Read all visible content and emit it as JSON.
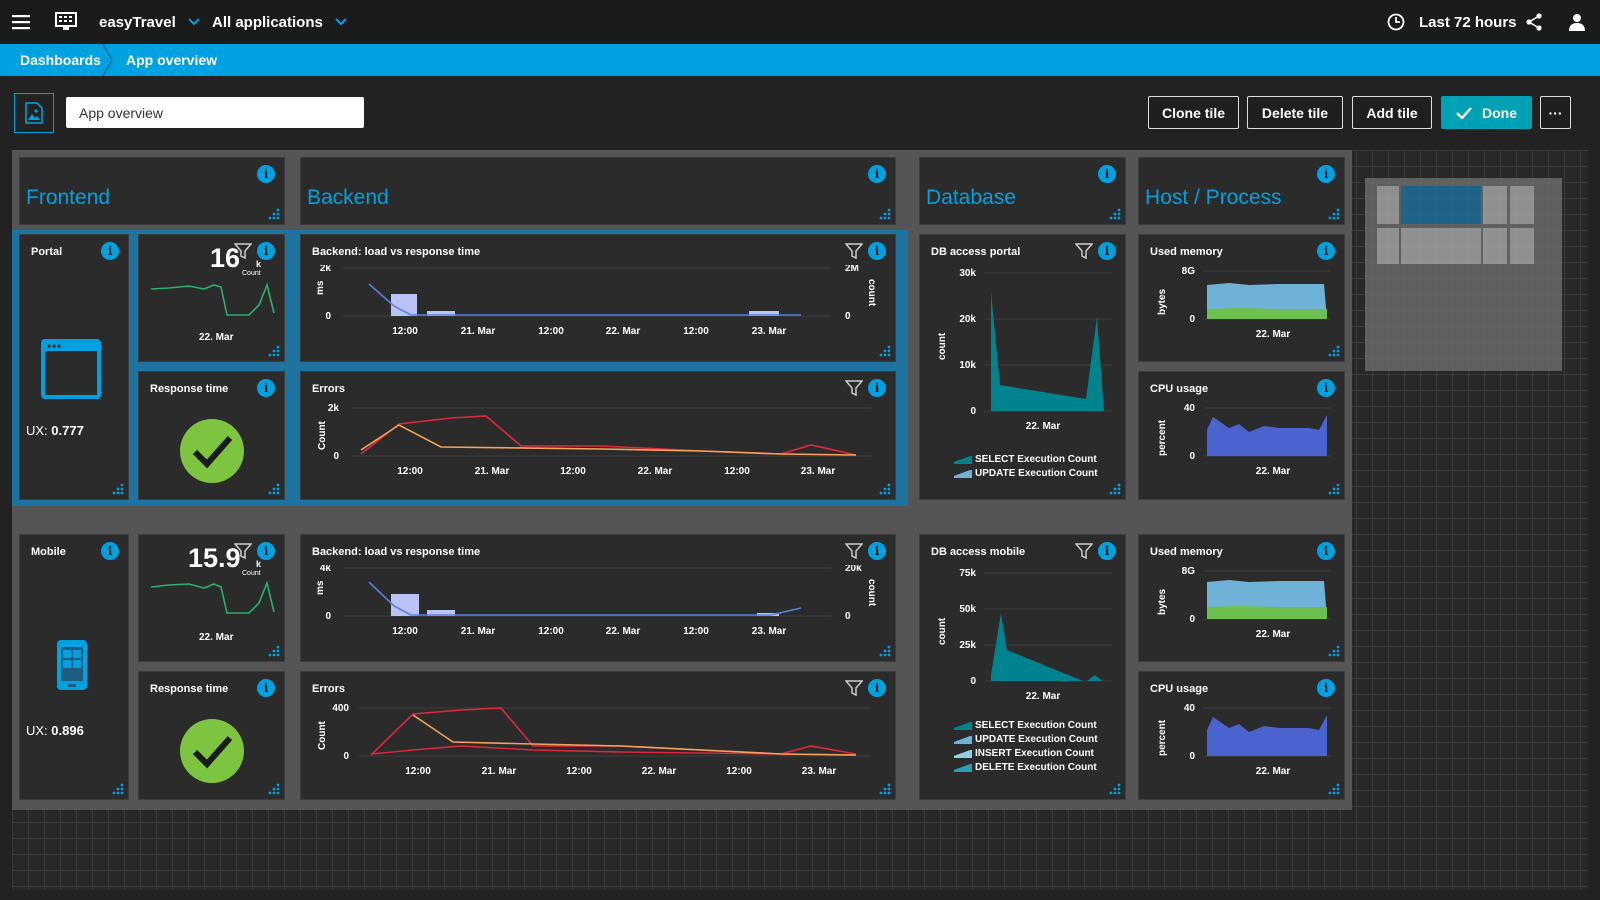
{
  "topbar": {
    "app_name": "easyTravel",
    "app_filter": "All applications",
    "timeframe": "Last 72 hours"
  },
  "breadcrumbs": [
    "Dashboards",
    "App overview"
  ],
  "edit": {
    "dashboard_name": "App overview",
    "buttons": {
      "clone": "Clone tile",
      "delete": "Delete tile",
      "add": "Add tile",
      "done": "Done",
      "more": "···"
    }
  },
  "headers": {
    "frontend": "Frontend",
    "backend": "Backend",
    "database": "Database",
    "host": "Host / Process"
  },
  "portal": {
    "label": "Portal",
    "ux_label": "UX:",
    "ux_value": "0.777",
    "load_value": "16",
    "load_unit": "k",
    "load_sub": "Count",
    "load_x": "22. Mar",
    "response_title": "Response time",
    "backend_title": "Backend: load vs response time",
    "backend_ylabel": "ms",
    "backend_y2label": "count",
    "backend_yticks": [
      "2k",
      "0"
    ],
    "backend_y2ticks": [
      "2M",
      "0"
    ],
    "backend_xticks": [
      "12:00",
      "21. Mar",
      "12:00",
      "22. Mar",
      "12:00",
      "23. Mar"
    ],
    "errors_title": "Errors",
    "errors_ylabel": "Count",
    "errors_yticks": [
      "2k",
      "0"
    ],
    "errors_xticks": [
      "12:00",
      "21. Mar",
      "12:00",
      "22. Mar",
      "12:00",
      "23. Mar"
    ],
    "db_title": "DB access portal",
    "db_ylabel": "count",
    "db_yticks": [
      "30k",
      "20k",
      "10k",
      "0"
    ],
    "db_x": "22. Mar",
    "db_legend": [
      "SELECT Execution Count",
      "UPDATE Execution Count"
    ],
    "mem_title": "Used memory",
    "mem_ylabel": "bytes",
    "mem_yticks": [
      "8G",
      "0"
    ],
    "mem_x": "22. Mar",
    "cpu_title": "CPU usage",
    "cpu_ylabel": "percent",
    "cpu_yticks": [
      "40",
      "0"
    ],
    "cpu_x": "22. Mar"
  },
  "mobile": {
    "label": "Mobile",
    "ux_label": "UX:",
    "ux_value": "0.896",
    "load_value": "15.9",
    "load_unit": "k",
    "load_sub": "Count",
    "load_x": "22. Mar",
    "response_title": "Response time",
    "backend_title": "Backend: load vs response time",
    "backend_ylabel": "ms",
    "backend_y2label": "count",
    "backend_yticks": [
      "4k",
      "0"
    ],
    "backend_y2ticks": [
      "20k",
      "0"
    ],
    "backend_xticks": [
      "12:00",
      "21. Mar",
      "12:00",
      "22. Mar",
      "12:00",
      "23. Mar"
    ],
    "errors_title": "Errors",
    "errors_ylabel": "Count",
    "errors_yticks": [
      "400",
      "0"
    ],
    "errors_xticks": [
      "12:00",
      "21. Mar",
      "12:00",
      "22. Mar",
      "12:00",
      "23. Mar"
    ],
    "db_title": "DB access mobile",
    "db_ylabel": "count",
    "db_yticks": [
      "75k",
      "50k",
      "25k",
      "0"
    ],
    "db_x": "22. Mar",
    "db_legend": [
      "SELECT Execution Count",
      "UPDATE Execution Count",
      "INSERT Execution Count",
      "DELETE Execution Count"
    ],
    "mem_title": "Used memory",
    "mem_ylabel": "bytes",
    "mem_yticks": [
      "8G",
      "0"
    ],
    "mem_x": "22. Mar",
    "cpu_title": "CPU usage",
    "cpu_ylabel": "percent",
    "cpu_yticks": [
      "40",
      "0"
    ],
    "cpu_x": "22. Mar"
  },
  "icons": [
    "menu-icon",
    "monitor-icon",
    "chevron-down-icon",
    "clock-icon",
    "share-icon",
    "user-icon",
    "image-icon",
    "info-icon",
    "filter-icon",
    "resize-handle-icon",
    "browser-window-icon",
    "smartphone-icon",
    "checkmark-icon"
  ],
  "colors": {
    "accent": "#00a1e0",
    "ok": "#7dc540",
    "load_line": "#2ab06f",
    "response_series": "#5b7fe0",
    "errors_a": "#e0283c",
    "errors_b": "#f5a25d",
    "db": "#00838f",
    "mem_a": "#6fb2d8",
    "mem_b": "#6dc04f",
    "cpu": "#4b63cf"
  }
}
